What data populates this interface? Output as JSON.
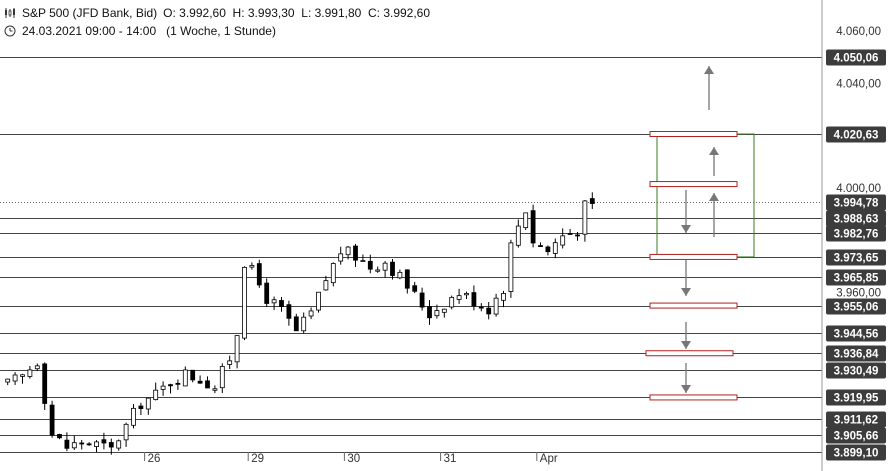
{
  "header": {
    "instrument": "S&P 500 (JFD Bank, Bid)",
    "ohlc": "O: 3.992,60  H: 3.993,30  L: 3.991,80  C: 3.992,60",
    "period": "24.03.2021 09:00 - 14:00   (1 Woche, 1 Stunde)",
    "instrument_icon": "candlestick-icon",
    "period_icon": "clock-icon"
  },
  "chart_data": {
    "type": "candlestick",
    "title": "S&P 500 (JFD Bank, Bid)",
    "y_axis_side": "right",
    "ylim": [
      3897,
      4068
    ],
    "date_ticks": [
      {
        "label": "26",
        "bar": 19
      },
      {
        "label": "29",
        "bar": 33
      },
      {
        "label": "30",
        "bar": 46
      },
      {
        "label": "31",
        "bar": 59
      },
      {
        "label": "Apr",
        "bar": 72
      }
    ],
    "axis_ticks": [
      {
        "label": "4.060,00",
        "value": 4060.0
      },
      {
        "label": "4.040,00",
        "value": 4040.0
      },
      {
        "label": "4.000,00",
        "value": 4000.0
      },
      {
        "label": "3.960,00",
        "value": 3960.0
      }
    ],
    "levels": [
      {
        "label": "4.050,06",
        "value": 4050.06,
        "style": "solid"
      },
      {
        "label": "4.020,63",
        "value": 4020.63,
        "style": "solid"
      },
      {
        "label": "3.994,78",
        "value": 3994.78,
        "style": "dotted"
      },
      {
        "label": "3.988,63",
        "value": 3988.63,
        "style": "solid"
      },
      {
        "label": "3.982,76",
        "value": 3982.76,
        "style": "solid"
      },
      {
        "label": "3.973,65",
        "value": 3973.65,
        "style": "solid"
      },
      {
        "label": "3.965,85",
        "value": 3965.85,
        "style": "solid"
      },
      {
        "label": "3.955,06",
        "value": 3955.06,
        "style": "solid"
      },
      {
        "label": "3.944,56",
        "value": 3944.56,
        "style": "solid"
      },
      {
        "label": "3.936,84",
        "value": 3936.84,
        "style": "solid"
      },
      {
        "label": "3.930,49",
        "value": 3930.49,
        "style": "solid"
      },
      {
        "label": "3.919,95",
        "value": 3919.95,
        "style": "solid"
      },
      {
        "label": "3.911,62",
        "value": 3911.62,
        "style": "solid"
      },
      {
        "label": "3.905,66",
        "value": 3905.66,
        "style": "solid"
      },
      {
        "label": "3.899,10",
        "value": 3899.1,
        "style": "solid"
      }
    ],
    "price_series": [
      {
        "bar": 0,
        "close": 3925
      },
      {
        "bar": 2,
        "close": 3928
      },
      {
        "bar": 4,
        "close": 3934
      },
      {
        "bar": 6,
        "close": 3906
      },
      {
        "bar": 8,
        "close": 3901
      },
      {
        "bar": 10,
        "close": 3903
      },
      {
        "bar": 12,
        "close": 3902
      },
      {
        "bar": 14,
        "close": 3900
      },
      {
        "bar": 16,
        "close": 3909
      },
      {
        "bar": 18,
        "close": 3918
      },
      {
        "bar": 20,
        "close": 3921
      },
      {
        "bar": 22,
        "close": 3926
      },
      {
        "bar": 24,
        "close": 3929
      },
      {
        "bar": 26,
        "close": 3927
      },
      {
        "bar": 28,
        "close": 3924
      },
      {
        "bar": 30,
        "close": 3935
      },
      {
        "bar": 31,
        "close": 3945
      },
      {
        "bar": 32,
        "close": 3972
      },
      {
        "bar": 33,
        "close": 3968
      },
      {
        "bar": 35,
        "close": 3958
      },
      {
        "bar": 37,
        "close": 3953
      },
      {
        "bar": 39,
        "close": 3945
      },
      {
        "bar": 41,
        "close": 3952
      },
      {
        "bar": 43,
        "close": 3965
      },
      {
        "bar": 45,
        "close": 3976
      },
      {
        "bar": 47,
        "close": 3974
      },
      {
        "bar": 49,
        "close": 3970
      },
      {
        "bar": 51,
        "close": 3972
      },
      {
        "bar": 53,
        "close": 3966
      },
      {
        "bar": 55,
        "close": 3959
      },
      {
        "bar": 57,
        "close": 3952
      },
      {
        "bar": 59,
        "close": 3956
      },
      {
        "bar": 61,
        "close": 3960
      },
      {
        "bar": 63,
        "close": 3957
      },
      {
        "bar": 65,
        "close": 3954
      },
      {
        "bar": 67,
        "close": 3962
      },
      {
        "bar": 68,
        "close": 3978
      },
      {
        "bar": 69,
        "close": 3986
      },
      {
        "bar": 70,
        "close": 3992
      },
      {
        "bar": 71,
        "close": 3980
      },
      {
        "bar": 73,
        "close": 3976
      },
      {
        "bar": 75,
        "close": 3982
      },
      {
        "bar": 77,
        "close": 3984
      },
      {
        "bar": 78,
        "close": 3993
      },
      {
        "bar": 79,
        "close": 3992.6
      }
    ],
    "bar_count": 80,
    "zone_box_color": "#3a7d1e",
    "level_bar_color": "#b02020",
    "arrow_color": "#777777",
    "up_candle_color": "#ffffff",
    "down_candle_color": "#000000"
  }
}
